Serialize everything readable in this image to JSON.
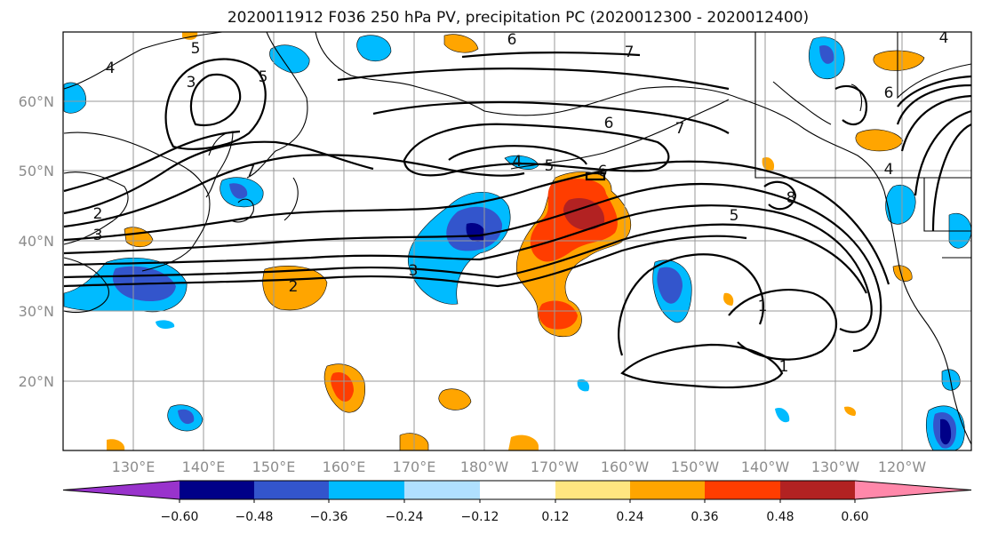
{
  "title": "2020011912 F036 250 hPa PV, precipitation PC (2020012300 - 2020012400)",
  "lon_labels": [
    "130°E",
    "140°E",
    "150°E",
    "160°E",
    "170°E",
    "180°W",
    "170°W",
    "160°W",
    "150°W",
    "140°W",
    "130°W",
    "120°W"
  ],
  "lat_labels": [
    "20°N",
    "30°N",
    "40°N",
    "50°N",
    "60°N"
  ],
  "pv_contour_labels": [
    "1",
    "2",
    "3",
    "4",
    "5",
    "6",
    "7",
    "8"
  ],
  "colorbar": {
    "tick_labels": [
      "−0.60",
      "−0.48",
      "−0.36",
      "−0.24",
      "−0.12",
      "0.12",
      "0.24",
      "0.36",
      "0.48",
      "0.60"
    ],
    "colors": [
      "#9933cc",
      "#000088",
      "#3355cc",
      "#00bbff",
      "#b0e0ff",
      "#ffffff",
      "#ffe680",
      "#ffa500",
      "#ff3d00",
      "#b22222",
      "#ff88aa"
    ]
  }
}
